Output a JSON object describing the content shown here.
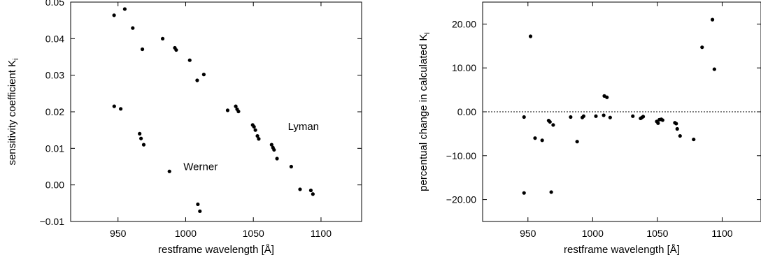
{
  "chart_data": [
    {
      "type": "scatter",
      "xlabel": "restframe wavelength [Å]",
      "ylabel": "sensitivity coefficient K",
      "ylabel_sub": "i",
      "xlim": [
        915,
        1130
      ],
      "ylim": [
        -0.01,
        0.05
      ],
      "xticks": [
        950,
        1000,
        1050,
        1100
      ],
      "yticks": [
        -0.01,
        0.0,
        0.01,
        0.02,
        0.03,
        0.04,
        0.05
      ],
      "ytick_labels": [
        "−0.01",
        "0.00",
        "0.01",
        "0.02",
        "0.03",
        "0.04",
        "0.05"
      ],
      "annotations": [
        {
          "text": "Lyman",
          "x": 1087,
          "y": 0.015
        },
        {
          "text": "Werner",
          "x": 1011,
          "y": 0.004
        }
      ],
      "points": [
        [
          947.1,
          0.0464
        ],
        [
          955.0,
          0.0481
        ],
        [
          960.9,
          0.0429
        ],
        [
          968.0,
          0.0371
        ],
        [
          983.0,
          0.04
        ],
        [
          992.0,
          0.0375
        ],
        [
          993.0,
          0.0369
        ],
        [
          1003.0,
          0.0341
        ],
        [
          1008.5,
          0.0286
        ],
        [
          1013.4,
          0.0302
        ],
        [
          1031.0,
          0.0204
        ],
        [
          1037.0,
          0.0215
        ],
        [
          1038.0,
          0.0207
        ],
        [
          1039.0,
          0.0201
        ],
        [
          1049.5,
          0.0164
        ],
        [
          1050.5,
          0.0159
        ],
        [
          1051.5,
          0.015
        ],
        [
          1053.0,
          0.0134
        ],
        [
          1054.0,
          0.0126
        ],
        [
          1063.5,
          0.011
        ],
        [
          1064.5,
          0.0102
        ],
        [
          1065.3,
          0.0096
        ],
        [
          1067.5,
          0.0072
        ],
        [
          1078.0,
          0.005
        ],
        [
          1084.5,
          -0.0012
        ],
        [
          1092.5,
          -0.0015
        ],
        [
          1094.0,
          -0.0025
        ],
        [
          947.2,
          0.0215
        ],
        [
          952.0,
          0.0208
        ],
        [
          966.0,
          0.014
        ],
        [
          967.0,
          0.0127
        ],
        [
          969.0,
          0.011
        ],
        [
          988.0,
          0.0037
        ],
        [
          1009.0,
          -0.0053
        ],
        [
          1010.5,
          -0.0072
        ]
      ]
    },
    {
      "type": "scatter",
      "xlabel": "restframe wavelength [Å]",
      "ylabel": "percentual change in calculated K",
      "ylabel_sub": "i",
      "xlim": [
        915,
        1130
      ],
      "ylim": [
        -25,
        25
      ],
      "xticks": [
        950,
        1000,
        1050,
        1100
      ],
      "yticks": [
        -20,
        -10,
        0,
        10,
        20
      ],
      "ytick_labels": [
        "−20.00",
        "−10.00",
        "0.00",
        "10.00",
        "20.00"
      ],
      "reference_line": {
        "y": 0,
        "style": "dotted"
      },
      "points": [
        [
          947.0,
          -1.2
        ],
        [
          947.0,
          -18.5
        ],
        [
          952.0,
          17.2
        ],
        [
          955.5,
          -6.0
        ],
        [
          961.0,
          -6.5
        ],
        [
          966.0,
          -2.0
        ],
        [
          967.0,
          -2.3
        ],
        [
          968.0,
          -18.3
        ],
        [
          969.5,
          -3.0
        ],
        [
          983.0,
          -1.2
        ],
        [
          988.0,
          -6.8
        ],
        [
          992.0,
          -1.3
        ],
        [
          993.0,
          -1.0
        ],
        [
          1002.5,
          -1.0
        ],
        [
          1008.5,
          -0.8
        ],
        [
          1009.0,
          3.6
        ],
        [
          1011.0,
          3.3
        ],
        [
          1013.5,
          -1.3
        ],
        [
          1031.0,
          -1.0
        ],
        [
          1037.0,
          -1.5
        ],
        [
          1038.0,
          -1.3
        ],
        [
          1039.0,
          -1.1
        ],
        [
          1049.5,
          -2.2
        ],
        [
          1050.5,
          -2.6
        ],
        [
          1051.5,
          -1.8
        ],
        [
          1053.0,
          -1.7
        ],
        [
          1054.0,
          -1.9
        ],
        [
          1063.5,
          -2.5
        ],
        [
          1064.5,
          -2.7
        ],
        [
          1065.3,
          -3.9
        ],
        [
          1067.5,
          -5.5
        ],
        [
          1078.0,
          -6.3
        ],
        [
          1084.5,
          14.7
        ],
        [
          1092.5,
          21.0
        ],
        [
          1094.0,
          9.7
        ]
      ]
    }
  ]
}
